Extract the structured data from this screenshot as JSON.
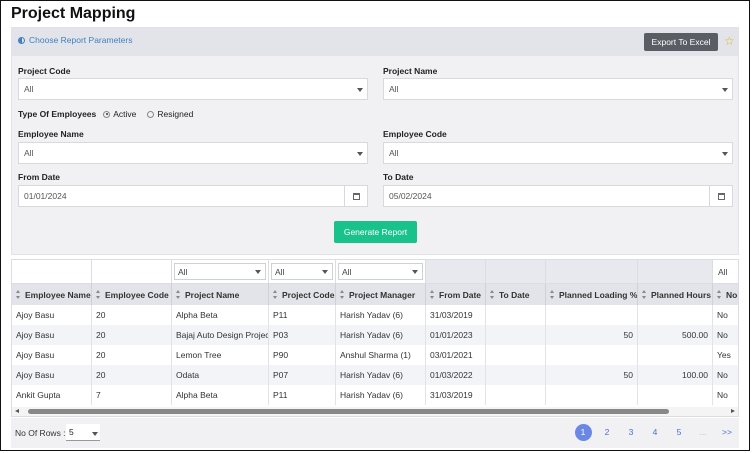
{
  "page": {
    "title": "Project Mapping"
  },
  "params": {
    "toggle_label": "Choose Report Parameters",
    "export_label": "Export To Excel",
    "project_code": {
      "label": "Project Code",
      "value": "All"
    },
    "project_name": {
      "label": "Project Name",
      "value": "All"
    },
    "employee_type": {
      "label": "Type Of Employees",
      "options": [
        "Active",
        "Resigned"
      ],
      "selected": "Active"
    },
    "employee_name": {
      "label": "Employee Name",
      "value": "All"
    },
    "employee_code": {
      "label": "Employee Code",
      "value": "All"
    },
    "from_date": {
      "label": "From Date",
      "value": "01/01/2024"
    },
    "to_date": {
      "label": "To Date",
      "value": "05/02/2024"
    },
    "generate_label": "Generate Report"
  },
  "grid": {
    "filters": {
      "project_name": "All",
      "project_code": "All",
      "project_manager": "All",
      "last": "All"
    },
    "columns": [
      "Employee Name",
      "Employee Code",
      "Project Name",
      "Project Code",
      "Project Manager",
      "From Date",
      "To Date",
      "Planned Loading %",
      "Planned Hours",
      "Non"
    ],
    "rows": [
      [
        "Ajoy Basu",
        "20",
        "Alpha Beta",
        "P11",
        "Harish Yadav (6)",
        "31/03/2019",
        "",
        "",
        "",
        "No"
      ],
      [
        "Ajoy Basu",
        "20",
        "Bajaj Auto Design Project",
        "P03",
        "Harish Yadav (6)",
        "01/01/2023",
        "",
        "50",
        "500.00",
        "No"
      ],
      [
        "Ajoy Basu",
        "20",
        "Lemon Tree",
        "P90",
        "Anshul Sharma (1)",
        "03/01/2021",
        "",
        "",
        "",
        "Yes"
      ],
      [
        "Ajoy Basu",
        "20",
        "Odata",
        "P07",
        "Harish Yadav (6)",
        "01/03/2022",
        "",
        "50",
        "100.00",
        "No"
      ],
      [
        "Ankit Gupta",
        "7",
        "Alpha Beta",
        "P11",
        "Harish Yadav (6)",
        "31/03/2019",
        "",
        "",
        "",
        "No"
      ]
    ]
  },
  "footer": {
    "rows_label": "No Of Rows :",
    "rows_value": "5",
    "pages": [
      "1",
      "2",
      "3",
      "4",
      "5",
      "...",
      ">>"
    ],
    "current_page": "1"
  }
}
